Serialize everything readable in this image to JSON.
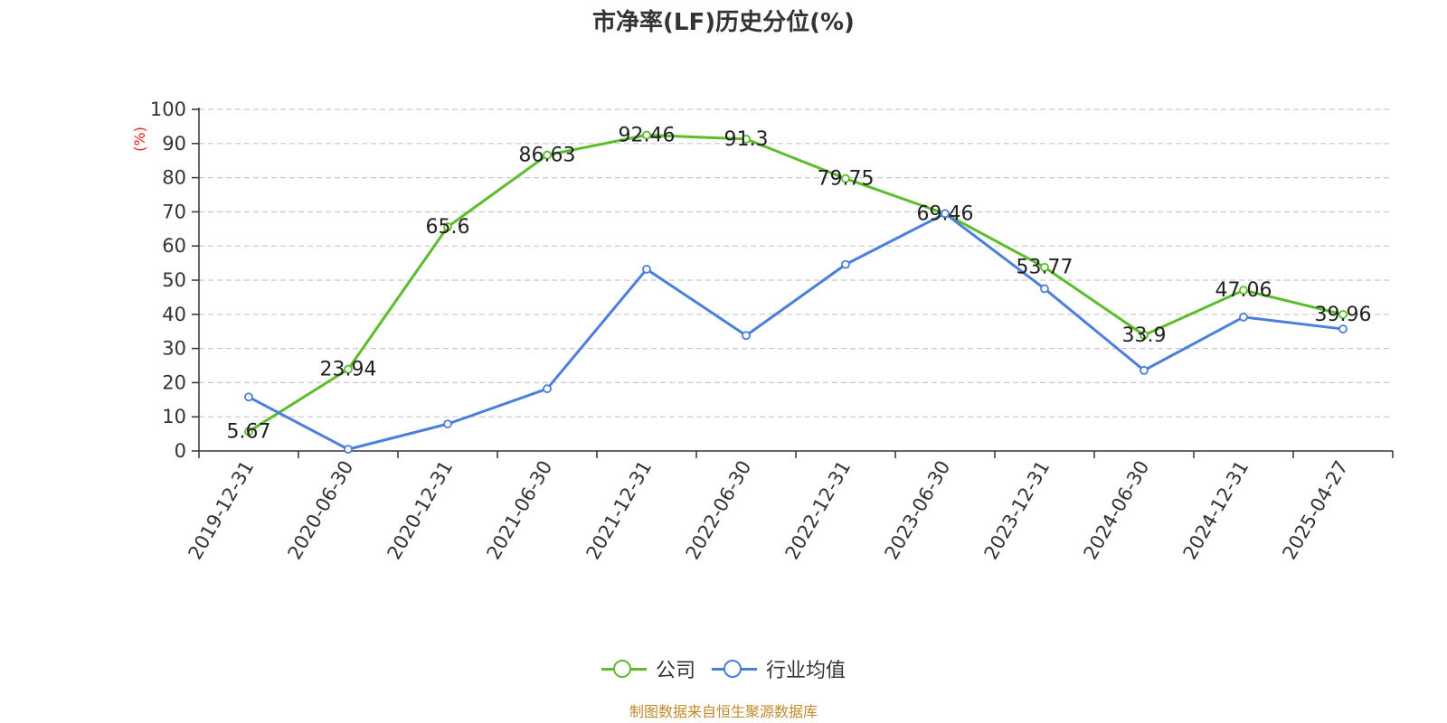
{
  "chart_data": {
    "type": "line",
    "title": "市净率(LF)历史分位(%)",
    "ylabel": "(%)",
    "xlabel": "",
    "ylim": [
      0,
      100
    ],
    "yticks": [
      0,
      10,
      20,
      30,
      40,
      50,
      60,
      70,
      80,
      90,
      100
    ],
    "grid": true,
    "legend_position": "bottom",
    "categories": [
      "2019-12-31",
      "2020-06-30",
      "2020-12-31",
      "2021-06-30",
      "2021-12-31",
      "2022-06-30",
      "2022-12-31",
      "2023-06-30",
      "2023-12-31",
      "2024-06-30",
      "2024-12-31",
      "2025-04-27"
    ],
    "series": [
      {
        "name": "公司",
        "color": "#5bbd2b",
        "values": [
          5.67,
          23.94,
          65.6,
          86.63,
          92.46,
          91.3,
          79.75,
          69.46,
          53.77,
          33.9,
          47.06,
          39.96
        ],
        "labels": [
          "5.67",
          "23.94",
          "65.6",
          "86.63",
          "92.46",
          "91.3",
          "79.75",
          "69.46",
          "53.77",
          "33.9",
          "47.06",
          "39.96"
        ]
      },
      {
        "name": "行业均值",
        "color": "#4a7fdc",
        "values": [
          15.8,
          0.5,
          7.9,
          18.2,
          53.2,
          33.8,
          54.6,
          69.5,
          47.5,
          23.6,
          39.2,
          35.7
        ]
      }
    ]
  },
  "footer": {
    "source": "制图数据来自恒生聚源数据库"
  }
}
